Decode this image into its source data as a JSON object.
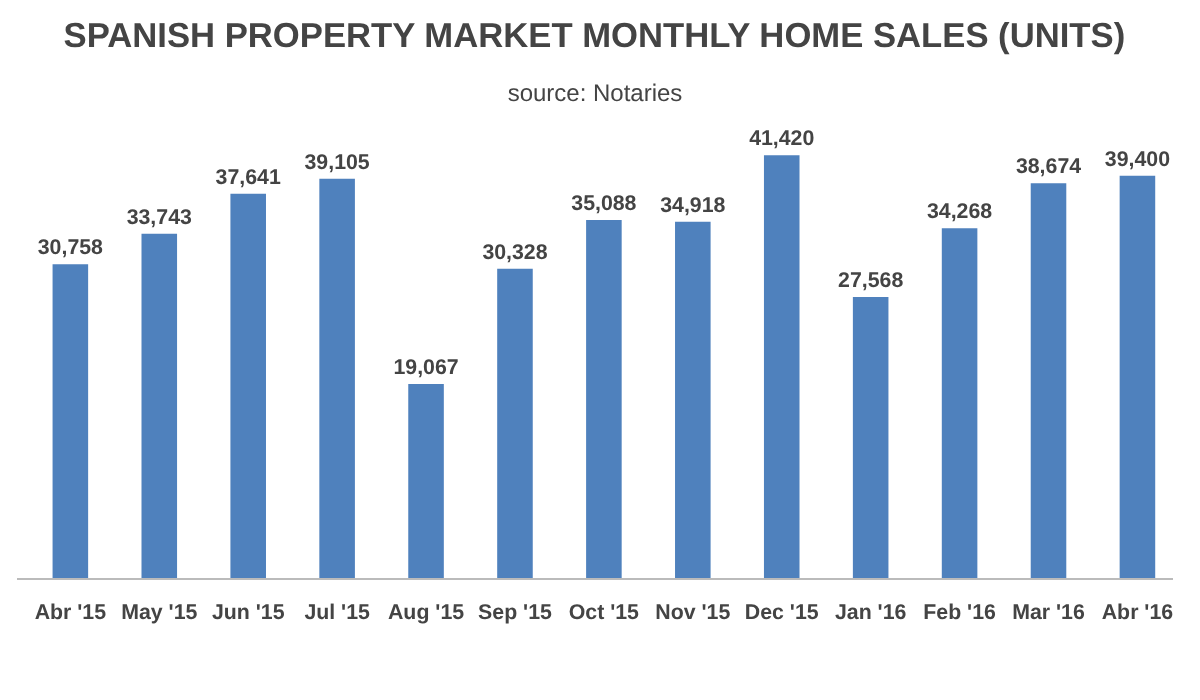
{
  "chart_data": {
    "type": "bar",
    "title": "SPANISH PROPERTY MARKET MONTHLY HOME SALES (UNITS)",
    "subtitle": "source: Notaries",
    "categories": [
      "Abr '15",
      "May '15",
      "Jun '15",
      "Jul '15",
      "Aug '15",
      "Sep '15",
      "Oct '15",
      "Nov '15",
      "Dec '15",
      "Jan '16",
      "Feb '16",
      "Mar '16",
      "Abr '16"
    ],
    "values": [
      30758,
      33743,
      37641,
      39105,
      19067,
      30328,
      35088,
      34918,
      41420,
      27568,
      34268,
      38674,
      39400
    ],
    "value_labels": [
      "30,758",
      "33,743",
      "37,641",
      "39,105",
      "19,067",
      "30,328",
      "35,088",
      "34,918",
      "41,420",
      "27,568",
      "34,268",
      "38,674",
      "39,400"
    ],
    "color": "#4f81bd",
    "grid": false
  }
}
